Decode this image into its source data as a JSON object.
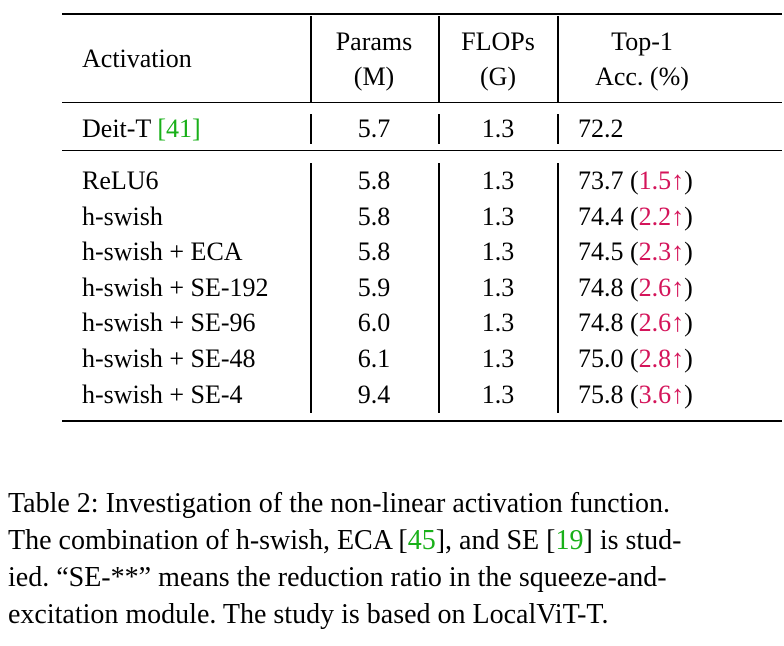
{
  "table": {
    "header": {
      "activation": "Activation",
      "params_line1": "Params",
      "params_line2": "(M)",
      "flops_line1": "FLOPs",
      "flops_line2": "(G)",
      "acc_line1": "Top-1",
      "acc_line2": "Acc. (%)"
    },
    "baseline": {
      "name": "Deit-T",
      "cite_open": "[",
      "cite": "41",
      "cite_close": "]",
      "params": "5.7",
      "flops": "1.3",
      "acc": "72.2"
    },
    "rows": [
      {
        "name": "ReLU6",
        "params": "5.8",
        "flops": "1.3",
        "acc": "73.7",
        "gain": "1.5↑"
      },
      {
        "name": "h-swish",
        "params": "5.8",
        "flops": "1.3",
        "acc": "74.4",
        "gain": "2.2↑"
      },
      {
        "name": "h-swish + ECA",
        "params": "5.8",
        "flops": "1.3",
        "acc": "74.5",
        "gain": "2.3↑"
      },
      {
        "name": "h-swish + SE-192",
        "params": "5.9",
        "flops": "1.3",
        "acc": "74.8",
        "gain": "2.6↑"
      },
      {
        "name": "h-swish + SE-96",
        "params": "6.0",
        "flops": "1.3",
        "acc": "74.8",
        "gain": "2.6↑"
      },
      {
        "name": "h-swish + SE-48",
        "params": "6.1",
        "flops": "1.3",
        "acc": "75.0",
        "gain": "2.8↑"
      },
      {
        "name": "h-swish + SE-4",
        "params": "9.4",
        "flops": "1.3",
        "acc": "75.8",
        "gain": "3.6↑"
      }
    ]
  },
  "caption": {
    "line1": "Table 2: Investigation of the non-linear activation function.",
    "line2_a": "The combination of h-swish, ECA [",
    "cite_eca": "45",
    "line2_b": "], and SE [",
    "cite_se": "19",
    "line2_c": "] is stud-",
    "line3": "ied. “SE-**” means the reduction ratio in the squeeze-and-",
    "line4": "excitation module. The study is based on LocalViT-T."
  },
  "colors": {
    "citation_link": "#19b019",
    "gain": "#d4145a"
  }
}
